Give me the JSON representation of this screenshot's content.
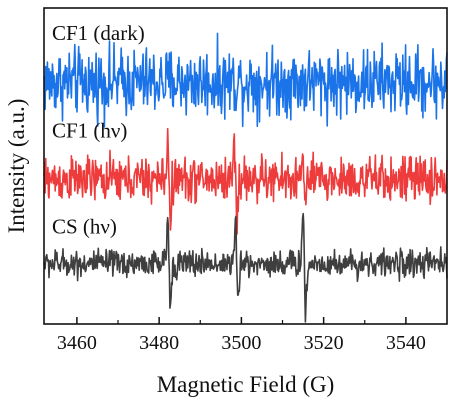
{
  "chart_data": {
    "type": "line",
    "title": "",
    "xlabel": "Magnetic Field (G)",
    "ylabel": "Intensity (a.u.)",
    "xlim": [
      3452,
      3550
    ],
    "x_ticks": [
      3460,
      3480,
      3500,
      3520,
      3540
    ],
    "y_ticks": "none",
    "grid": false,
    "legend": "none (series labeled inline above each trace)",
    "series": [
      {
        "name": "CF1 (dark)",
        "color": "#1a73e8",
        "baseline": 3.0,
        "noise_amplitude": 0.45,
        "peaks": []
      },
      {
        "name": "CF1 (hν)",
        "color": "#ee3b3b",
        "baseline": 1.55,
        "noise_amplitude": 0.3,
        "peaks": [
          {
            "x": 3482.4,
            "amplitude": 0.55
          },
          {
            "x": 3498.6,
            "amplitude": 0.6
          },
          {
            "x": 3515.3,
            "amplitude": 0.35
          }
        ]
      },
      {
        "name": "CS (hν)",
        "color": "#3f3f3f",
        "baseline": 0.3,
        "noise_amplitude": 0.18,
        "peaks": [
          {
            "x": 3482.4,
            "amplitude": 0.65
          },
          {
            "x": 3498.9,
            "amplitude": 0.65
          },
          {
            "x": 3515.3,
            "amplitude": 0.8
          }
        ]
      }
    ]
  }
}
